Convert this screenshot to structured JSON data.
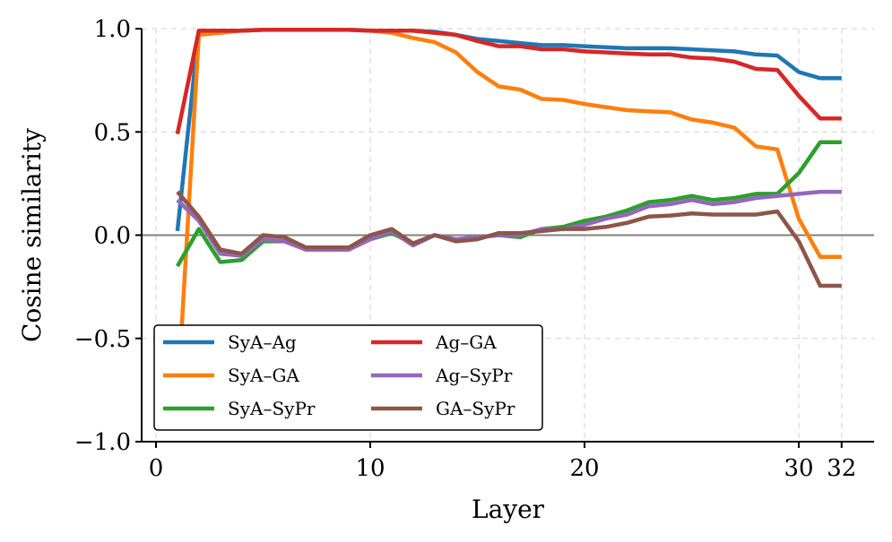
{
  "chart_data": {
    "type": "line",
    "title": "",
    "xlabel": "Layer",
    "ylabel": "Cosine similarity",
    "xlim": [
      0,
      33.5
    ],
    "ylim": [
      -1.0,
      1.0
    ],
    "xticks": [
      0,
      10,
      20,
      30,
      32
    ],
    "xtick_labels": [
      "0",
      "10",
      "20",
      "30",
      "32"
    ],
    "yticks": [
      -1.0,
      -0.5,
      0.0,
      0.5,
      1.0
    ],
    "ytick_labels": [
      "−1.0",
      "−0.5",
      "0.0",
      "0.5",
      "1.0"
    ],
    "grid": true,
    "zero_line": true,
    "legend_position": "lower-left",
    "x": [
      1,
      2,
      3,
      4,
      5,
      6,
      7,
      8,
      9,
      10,
      11,
      12,
      13,
      14,
      15,
      16,
      17,
      18,
      19,
      20,
      21,
      22,
      23,
      24,
      25,
      26,
      27,
      28,
      29,
      30,
      31,
      32
    ],
    "series": [
      {
        "name": "SyA–Ag",
        "color": "#1f77b4",
        "values": [
          0.02,
          0.99,
          0.99,
          0.99,
          0.995,
          0.995,
          0.995,
          0.995,
          0.995,
          0.99,
          0.99,
          0.99,
          0.985,
          0.97,
          0.95,
          0.94,
          0.93,
          0.92,
          0.92,
          0.915,
          0.91,
          0.905,
          0.905,
          0.905,
          0.9,
          0.895,
          0.89,
          0.875,
          0.87,
          0.79,
          0.76,
          0.76
        ]
      },
      {
        "name": "SyA–GA",
        "color": "#ff7f0e",
        "values": [
          -0.8,
          0.97,
          0.98,
          0.99,
          0.995,
          0.995,
          0.995,
          0.995,
          0.995,
          0.99,
          0.98,
          0.955,
          0.935,
          0.885,
          0.79,
          0.72,
          0.705,
          0.66,
          0.655,
          0.635,
          0.62,
          0.605,
          0.6,
          0.595,
          0.56,
          0.545,
          0.52,
          0.43,
          0.415,
          0.08,
          -0.105,
          -0.105
        ]
      },
      {
        "name": "SyA–SyPr",
        "color": "#2ca02c",
        "values": [
          -0.15,
          0.03,
          -0.13,
          -0.12,
          -0.03,
          -0.03,
          -0.07,
          -0.07,
          -0.07,
          -0.02,
          0.01,
          -0.04,
          0.0,
          -0.02,
          -0.01,
          0.0,
          -0.01,
          0.03,
          0.04,
          0.07,
          0.09,
          0.12,
          0.16,
          0.17,
          0.19,
          0.17,
          0.18,
          0.2,
          0.2,
          0.3,
          0.45,
          0.45
        ]
      },
      {
        "name": "Ag–GA",
        "color": "#d62728",
        "values": [
          0.49,
          0.99,
          0.99,
          0.99,
          0.995,
          0.995,
          0.995,
          0.995,
          0.995,
          0.99,
          0.99,
          0.99,
          0.98,
          0.97,
          0.94,
          0.915,
          0.915,
          0.9,
          0.9,
          0.89,
          0.885,
          0.88,
          0.875,
          0.875,
          0.86,
          0.855,
          0.84,
          0.805,
          0.8,
          0.675,
          0.565,
          0.565
        ]
      },
      {
        "name": "Ag–SyPr",
        "color": "#9467bd",
        "values": [
          0.17,
          0.07,
          -0.09,
          -0.1,
          -0.02,
          -0.03,
          -0.07,
          -0.07,
          -0.07,
          -0.02,
          0.02,
          -0.05,
          0.0,
          -0.02,
          -0.01,
          0.0,
          0.0,
          0.03,
          0.03,
          0.05,
          0.08,
          0.1,
          0.14,
          0.15,
          0.17,
          0.15,
          0.16,
          0.18,
          0.19,
          0.2,
          0.21,
          0.21
        ]
      },
      {
        "name": "GA–SyPr",
        "color": "#8c564b",
        "values": [
          0.21,
          0.09,
          -0.07,
          -0.09,
          0.0,
          -0.01,
          -0.06,
          -0.06,
          -0.06,
          0.0,
          0.03,
          -0.04,
          0.0,
          -0.03,
          -0.02,
          0.01,
          0.01,
          0.02,
          0.03,
          0.03,
          0.04,
          0.06,
          0.09,
          0.095,
          0.105,
          0.1,
          0.1,
          0.1,
          0.115,
          -0.03,
          -0.245,
          -0.245
        ]
      }
    ]
  }
}
